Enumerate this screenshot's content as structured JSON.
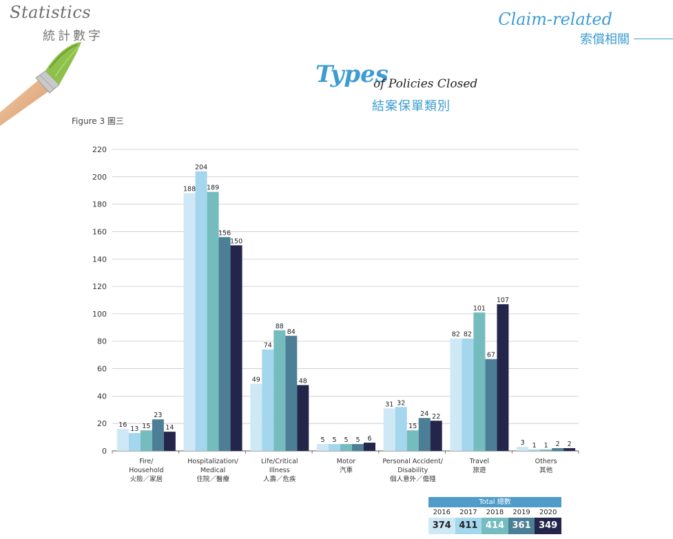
{
  "header": {
    "statistics_title": "Statistics",
    "statistics_subtitle": "統計數字",
    "claim_title": "Claim-related",
    "claim_subtitle": "索償相關"
  },
  "heading": {
    "types_big": "Types",
    "types_small": "of Policies Closed",
    "subtitle_zh": "結案保單類別"
  },
  "figure_label": "Figure 3 圖三",
  "chart_data": {
    "type": "bar",
    "ylim": [
      0,
      220
    ],
    "yticks": [
      0,
      20,
      40,
      60,
      80,
      100,
      120,
      140,
      160,
      180,
      200,
      220
    ],
    "grid": true,
    "categories": [
      [
        "Fire/",
        "Household",
        "火險／家居"
      ],
      [
        "Hospitalization/",
        "Medical",
        "住院／醫療"
      ],
      [
        "Life/Critical",
        "Illness",
        "人壽／危疾"
      ],
      [
        "Motor",
        "汽車"
      ],
      [
        "Personal Accident/",
        "Disability",
        "個人意外／傷殘"
      ],
      [
        "Travel",
        "旅遊"
      ],
      [
        "Others",
        "其他"
      ]
    ],
    "series": [
      {
        "name": "2016",
        "color": "#cfe8f5",
        "values": [
          16,
          188,
          49,
          5,
          31,
          82,
          3
        ]
      },
      {
        "name": "2017",
        "color": "#a4d6ed",
        "values": [
          13,
          204,
          74,
          5,
          32,
          82,
          1
        ]
      },
      {
        "name": "2018",
        "color": "#75bcbf",
        "values": [
          15,
          189,
          88,
          5,
          15,
          101,
          1
        ]
      },
      {
        "name": "2019",
        "color": "#4c7f95",
        "values": [
          23,
          156,
          84,
          5,
          24,
          67,
          2
        ]
      },
      {
        "name": "2020",
        "color": "#23264a",
        "values": [
          14,
          150,
          48,
          6,
          22,
          107,
          2
        ]
      }
    ]
  },
  "totals": {
    "header": "Total 總數",
    "years": [
      "2016",
      "2017",
      "2018",
      "2019",
      "2020"
    ],
    "values": [
      "374",
      "411",
      "414",
      "361",
      "349"
    ],
    "colors": [
      "#cfe8f5",
      "#a4d6ed",
      "#75bcbf",
      "#4c7f95",
      "#23264a"
    ],
    "text_colors": [
      "#222222",
      "#222222",
      "#ffffff",
      "#ffffff",
      "#ffffff"
    ]
  }
}
